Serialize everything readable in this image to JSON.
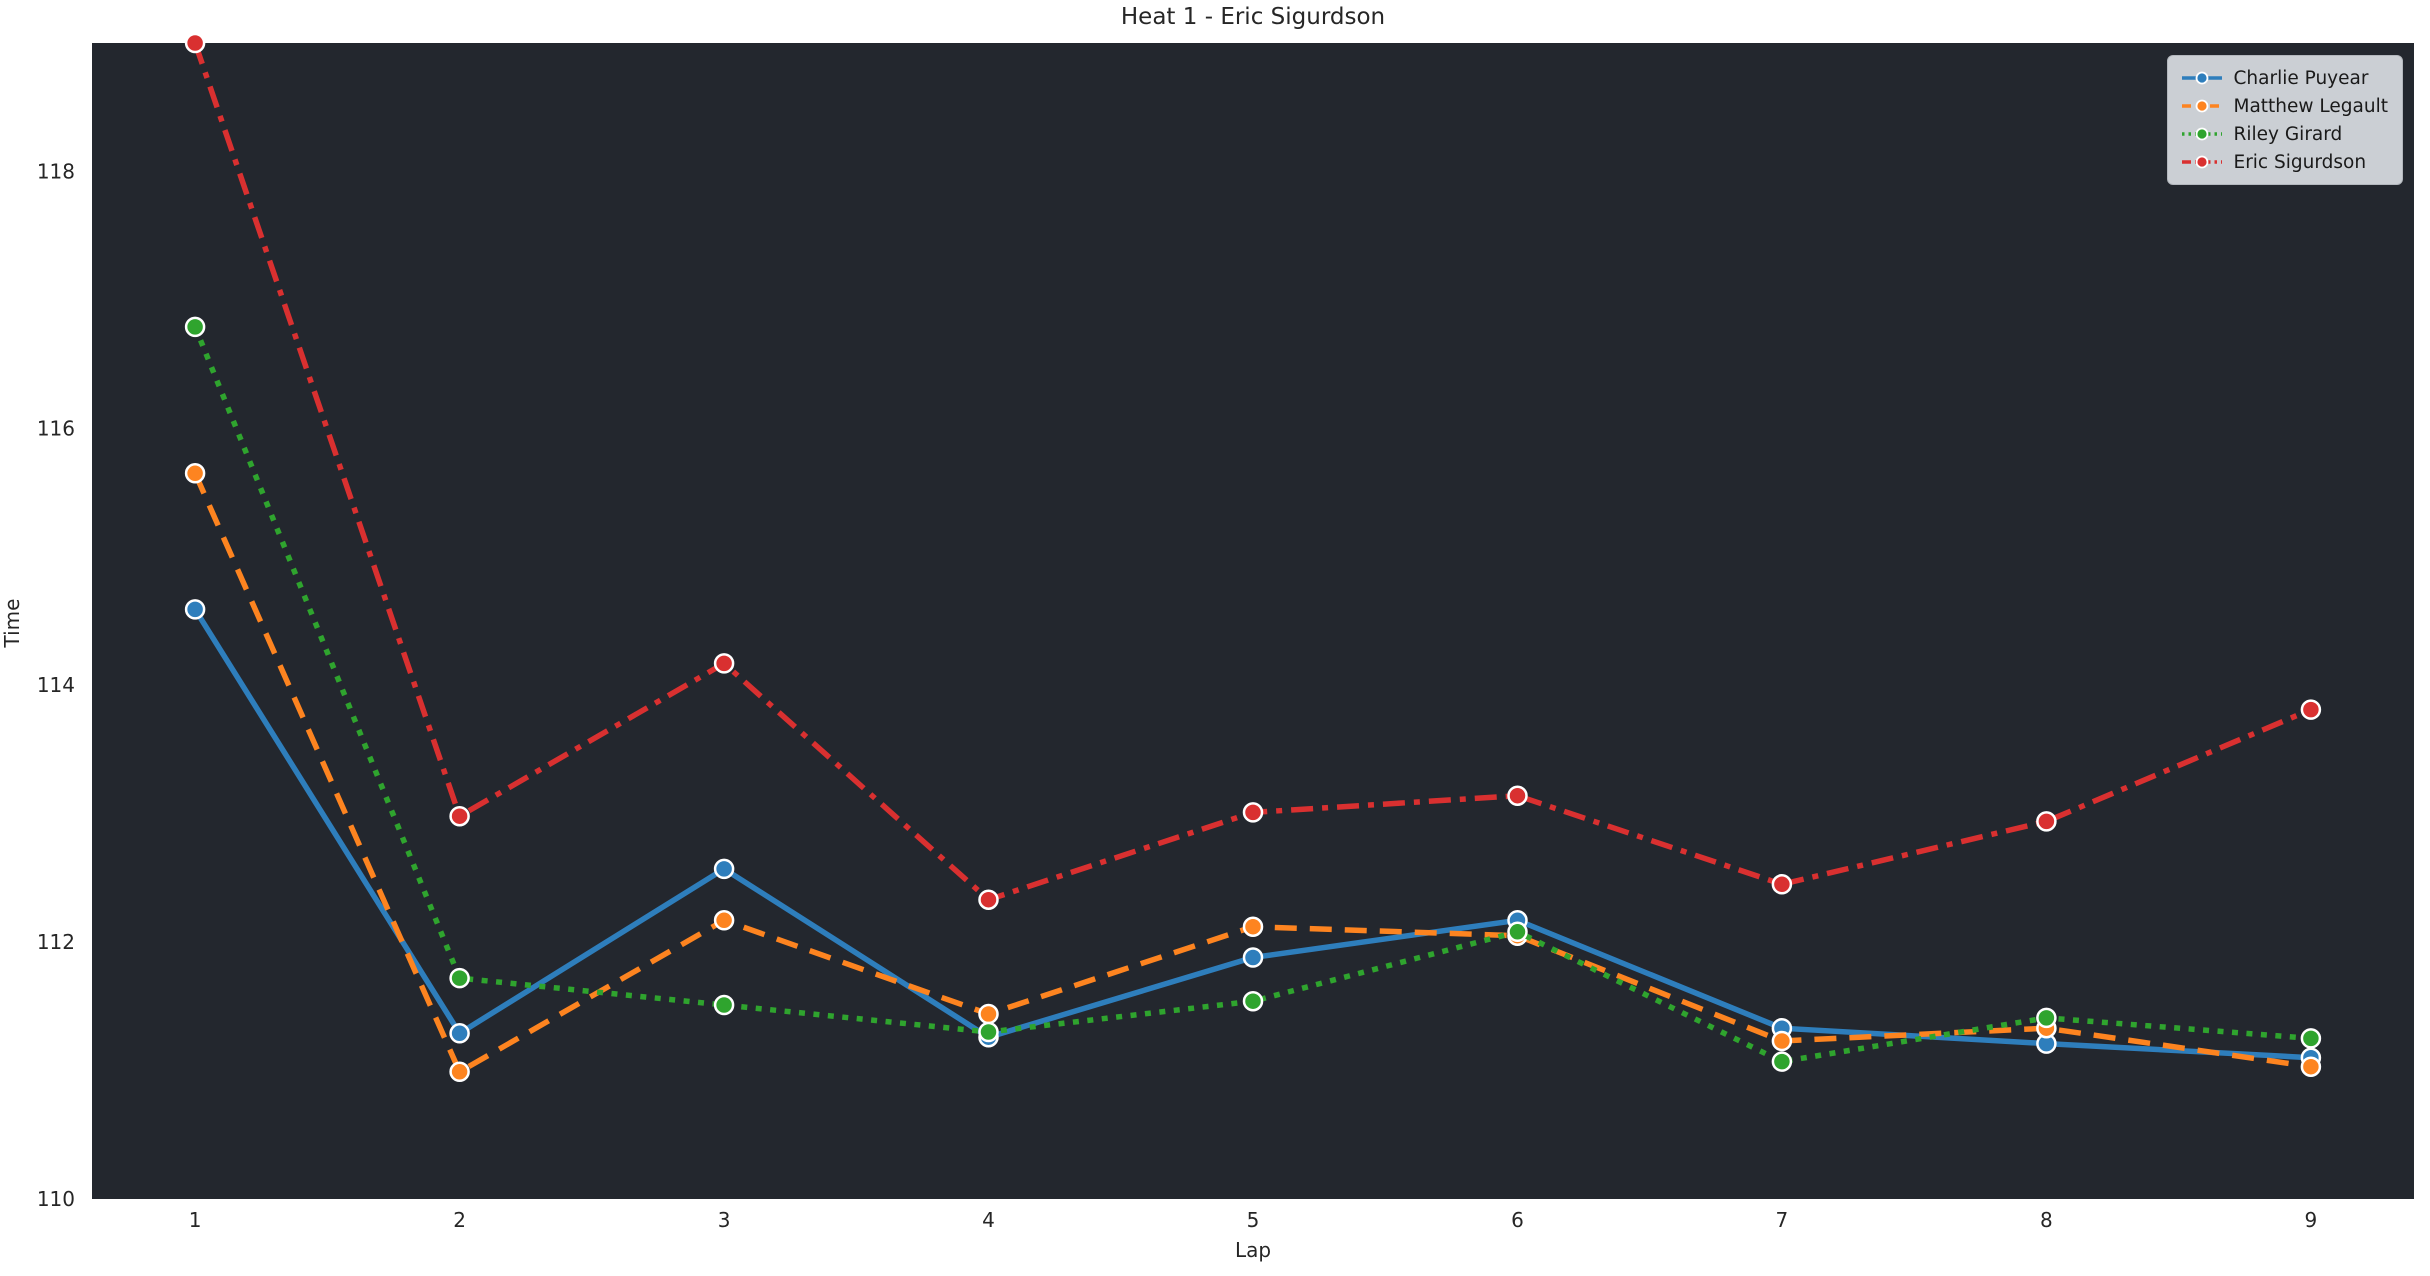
{
  "figure": {
    "title": "Heat 1 - Eric Sigurdson"
  },
  "chart_data": {
    "type": "line",
    "title": "Heat 1 - Eric Sigurdson",
    "xlabel": "Lap",
    "ylabel": "Time",
    "x": [
      1,
      2,
      3,
      4,
      5,
      6,
      7,
      8,
      9
    ],
    "xticks": [
      "1",
      "2",
      "3",
      "4",
      "5",
      "6",
      "7",
      "8",
      "9"
    ],
    "yticks": [
      110,
      112,
      114,
      116,
      118
    ],
    "xlim": [
      0.61,
      9.39
    ],
    "ylim": [
      110,
      119
    ],
    "grid": false,
    "legend": {
      "position": "upper right",
      "entries": [
        "Charlie Puyear",
        "Matthew Legault",
        "Riley Girard",
        "Eric Sigurdson"
      ]
    },
    "series": [
      {
        "name": "Charlie Puyear",
        "color": "#2e7ebc",
        "linestyle": "solid",
        "marker": "circle",
        "values": [
          114.59,
          111.29,
          112.57,
          111.26,
          111.88,
          112.17,
          111.33,
          111.21,
          111.1
        ]
      },
      {
        "name": "Matthew Legault",
        "color": "#fd8420",
        "linestyle": "dashed",
        "marker": "circle",
        "values": [
          115.65,
          110.99,
          112.17,
          111.44,
          112.12,
          112.05,
          111.23,
          111.33,
          111.03
        ]
      },
      {
        "name": "Riley Girard",
        "color": "#2fa42e",
        "linestyle": "dotted",
        "marker": "circle",
        "values": [
          116.79,
          111.72,
          111.51,
          111.3,
          111.54,
          112.08,
          111.07,
          111.41,
          111.25
        ]
      },
      {
        "name": "Eric Sigurdson",
        "color": "#d93030",
        "linestyle": "dashdot",
        "marker": "circle",
        "values": [
          119.0,
          112.98,
          114.17,
          112.33,
          113.01,
          113.14,
          112.45,
          112.94,
          113.81
        ]
      }
    ]
  },
  "style": {
    "figure_bg": "#ffffff",
    "plot_bg": "#23272e",
    "legend_bg": "#cbcfd4",
    "legend_text": "#1a1a1a",
    "axis_text": "#262626",
    "marker_edge": "#ffffff"
  }
}
